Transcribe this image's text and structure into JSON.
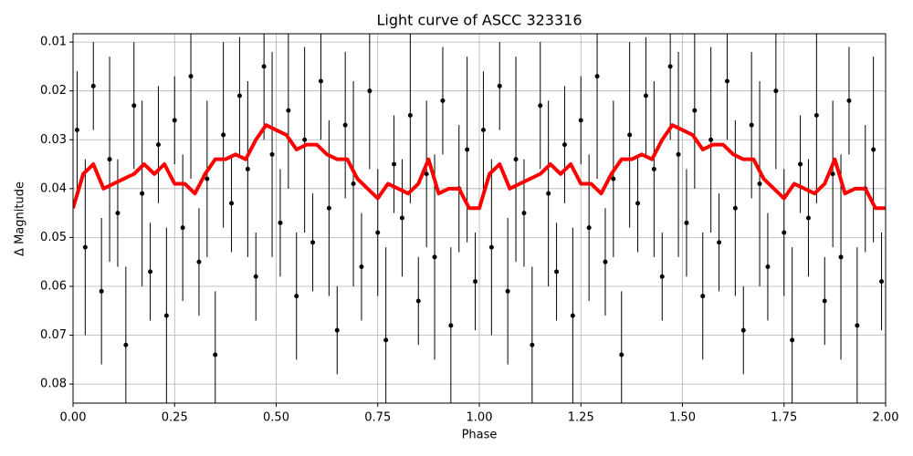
{
  "chart_data": {
    "type": "errorbar",
    "title": "Light curve of ASCC 323316",
    "xlabel": "Phase",
    "ylabel": "Δ Magnitude",
    "xlim": [
      0,
      2
    ],
    "ylim": [
      0.0083,
      0.0839
    ],
    "y_inverted": true,
    "grid": true,
    "xticks": [
      {
        "value": 0,
        "label": "0.00"
      },
      {
        "value": 0.25,
        "label": "0.25"
      },
      {
        "value": 0.5,
        "label": "0.50"
      },
      {
        "value": 0.75,
        "label": "0.75"
      },
      {
        "value": 1,
        "label": "1.00"
      },
      {
        "value": 1.25,
        "label": "1.25"
      },
      {
        "value": 1.5,
        "label": "1.50"
      },
      {
        "value": 1.75,
        "label": "1.75"
      },
      {
        "value": 2,
        "label": "2.00"
      }
    ],
    "yticks": [
      0.01,
      0.02,
      0.03,
      0.04,
      0.05,
      0.06,
      0.07,
      0.08
    ],
    "points": {
      "color": "#000000",
      "x": [
        0.01,
        0.03,
        0.05,
        0.07,
        0.09,
        0.11,
        0.13,
        0.15,
        0.17,
        0.19,
        0.21,
        0.23,
        0.25,
        0.27,
        0.29,
        0.31,
        0.33,
        0.35,
        0.37,
        0.39,
        0.41,
        0.43,
        0.45,
        0.47,
        0.49,
        0.51,
        0.53,
        0.55,
        0.57,
        0.59,
        0.61,
        0.63,
        0.65,
        0.67,
        0.69,
        0.71,
        0.73,
        0.75,
        0.77,
        0.79,
        0.81,
        0.83,
        0.85,
        0.87,
        0.89,
        0.91,
        0.93,
        0.95,
        0.97,
        0.99,
        1.01,
        1.03,
        1.05,
        1.07,
        1.09,
        1.11,
        1.13,
        1.15,
        1.17,
        1.19,
        1.21,
        1.23,
        1.25,
        1.27,
        1.29,
        1.31,
        1.33,
        1.35,
        1.37,
        1.39,
        1.41,
        1.43,
        1.45,
        1.47,
        1.49,
        1.51,
        1.53,
        1.55,
        1.57,
        1.59,
        1.61,
        1.63,
        1.65,
        1.67,
        1.69,
        1.71,
        1.73,
        1.75,
        1.77,
        1.79,
        1.81,
        1.83,
        1.85,
        1.87,
        1.89,
        1.91,
        1.93,
        1.95,
        1.97,
        1.99
      ],
      "values": [
        0.028,
        0.052,
        0.019,
        0.061,
        0.034,
        0.045,
        0.072,
        0.023,
        0.041,
        0.057,
        0.031,
        0.066,
        0.026,
        0.048,
        0.017,
        0.055,
        0.038,
        0.074,
        0.029,
        0.043,
        0.021,
        0.036,
        0.058,
        0.015,
        0.033,
        0.047,
        0.024,
        0.062,
        0.03,
        0.051,
        0.018,
        0.044,
        0.069,
        0.027,
        0.039,
        0.056,
        0.02,
        0.049,
        0.071,
        0.035,
        0.046,
        0.025,
        0.063,
        0.037,
        0.054,
        0.022,
        0.068,
        0.04,
        0.032,
        0.059,
        0.028,
        0.052,
        0.019,
        0.061,
        0.034,
        0.045,
        0.072,
        0.023,
        0.041,
        0.057,
        0.031,
        0.066,
        0.026,
        0.048,
        0.017,
        0.055,
        0.038,
        0.074,
        0.029,
        0.043,
        0.021,
        0.036,
        0.058,
        0.015,
        0.033,
        0.047,
        0.024,
        0.062,
        0.03,
        0.051,
        0.018,
        0.044,
        0.069,
        0.027,
        0.039,
        0.056,
        0.02,
        0.049,
        0.071,
        0.035,
        0.046,
        0.025,
        0.063,
        0.037,
        0.054,
        0.022,
        0.068,
        0.04,
        0.032,
        0.059
      ],
      "errors": [
        0.012,
        0.018,
        0.009,
        0.015,
        0.021,
        0.011,
        0.016,
        0.013,
        0.019,
        0.01,
        0.012,
        0.018,
        0.009,
        0.015,
        0.021,
        0.011,
        0.016,
        0.013,
        0.019,
        0.01,
        0.012,
        0.018,
        0.009,
        0.015,
        0.021,
        0.011,
        0.016,
        0.013,
        0.019,
        0.01,
        0.012,
        0.018,
        0.009,
        0.015,
        0.021,
        0.011,
        0.016,
        0.013,
        0.019,
        0.01,
        0.012,
        0.018,
        0.009,
        0.015,
        0.021,
        0.011,
        0.016,
        0.013,
        0.019,
        0.01,
        0.012,
        0.018,
        0.009,
        0.015,
        0.021,
        0.011,
        0.016,
        0.013,
        0.019,
        0.01,
        0.012,
        0.018,
        0.009,
        0.015,
        0.021,
        0.011,
        0.016,
        0.013,
        0.019,
        0.01,
        0.012,
        0.018,
        0.009,
        0.015,
        0.021,
        0.011,
        0.016,
        0.013,
        0.019,
        0.01,
        0.012,
        0.018,
        0.009,
        0.015,
        0.021,
        0.011,
        0.016,
        0.013,
        0.019,
        0.01,
        0.012,
        0.018,
        0.009,
        0.015,
        0.021,
        0.011,
        0.016,
        0.013,
        0.019,
        0.01
      ]
    },
    "curve": {
      "color": "#ff0000",
      "x": [
        0,
        0.025,
        0.05,
        0.075,
        0.1,
        0.125,
        0.15,
        0.175,
        0.2,
        0.225,
        0.25,
        0.275,
        0.3,
        0.325,
        0.35,
        0.375,
        0.4,
        0.425,
        0.45,
        0.475,
        0.5,
        0.525,
        0.55,
        0.575,
        0.6,
        0.625,
        0.65,
        0.675,
        0.7,
        0.725,
        0.75,
        0.775,
        0.8,
        0.825,
        0.85,
        0.875,
        0.9,
        0.925,
        0.95,
        0.975,
        1,
        1.025,
        1.05,
        1.075,
        1.1,
        1.125,
        1.15,
        1.175,
        1.2,
        1.225,
        1.25,
        1.275,
        1.3,
        1.325,
        1.35,
        1.375,
        1.4,
        1.425,
        1.45,
        1.475,
        1.5,
        1.525,
        1.55,
        1.575,
        1.6,
        1.625,
        1.65,
        1.675,
        1.7,
        1.725,
        1.75,
        1.775,
        1.8,
        1.825,
        1.85,
        1.875,
        1.9,
        1.925,
        1.95,
        1.975,
        2
      ],
      "values": [
        0.044,
        0.037,
        0.035,
        0.04,
        0.039,
        0.038,
        0.037,
        0.035,
        0.037,
        0.035,
        0.039,
        0.039,
        0.041,
        0.037,
        0.034,
        0.034,
        0.033,
        0.034,
        0.03,
        0.027,
        0.028,
        0.029,
        0.032,
        0.031,
        0.031,
        0.033,
        0.034,
        0.034,
        0.038,
        0.04,
        0.042,
        0.039,
        0.04,
        0.041,
        0.039,
        0.034,
        0.041,
        0.04,
        0.04,
        0.044,
        0.044,
        0.037,
        0.035,
        0.04,
        0.039,
        0.038,
        0.037,
        0.035,
        0.037,
        0.035,
        0.039,
        0.039,
        0.041,
        0.037,
        0.034,
        0.034,
        0.033,
        0.034,
        0.03,
        0.027,
        0.028,
        0.029,
        0.032,
        0.031,
        0.031,
        0.033,
        0.034,
        0.034,
        0.038,
        0.04,
        0.042,
        0.039,
        0.04,
        0.041,
        0.039,
        0.034,
        0.041,
        0.04,
        0.04,
        0.044,
        0.044
      ]
    }
  }
}
